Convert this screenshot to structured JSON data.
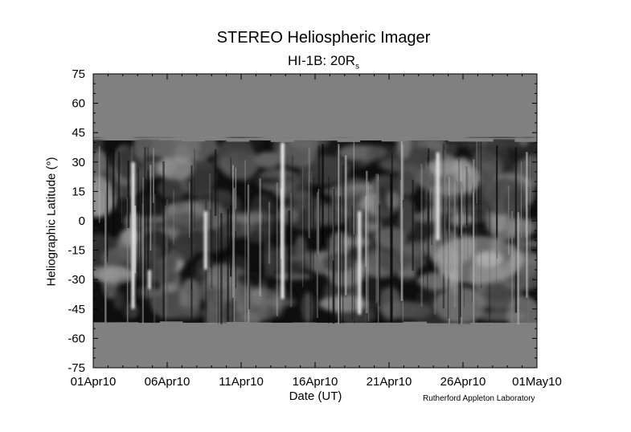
{
  "chart_data": {
    "type": "heatmap",
    "title": "STEREO Heliospheric Imager",
    "subtitle_main": "HI-1B: 20R",
    "subtitle_sub": "s",
    "xlabel": "Date (UT)",
    "ylabel": "Heliographic Latitude (°)",
    "credit": "Rutherford Appleton Laboratory",
    "x_tick_labels": [
      "01Apr10",
      "06Apr10",
      "11Apr10",
      "16Apr10",
      "21Apr10",
      "26Apr10",
      "01May10"
    ],
    "x_tick_days": [
      0,
      5,
      10,
      15,
      20,
      25,
      30
    ],
    "x_range_days": [
      0,
      30
    ],
    "y_ticks": [
      75,
      60,
      45,
      30,
      15,
      0,
      -15,
      -30,
      -45,
      -60,
      -75
    ],
    "ylim": [
      -75,
      75
    ],
    "data_band_latitude": {
      "top": 41,
      "bottom": -52
    },
    "no_data_color": "#808080",
    "colormap": "grayscale",
    "bright_features": [
      {
        "day": 2.7,
        "lat_from": -45,
        "lat_to": 30,
        "intensity": 0.95
      },
      {
        "day": 3.8,
        "lat_from": -35,
        "lat_to": -25,
        "intensity": 0.9
      },
      {
        "day": 7.6,
        "lat_from": -25,
        "lat_to": 5,
        "intensity": 0.95
      },
      {
        "day": 12.8,
        "lat_from": -40,
        "lat_to": 40,
        "intensity": 1.0
      },
      {
        "day": 18.0,
        "lat_from": -48,
        "lat_to": 5,
        "intensity": 0.95
      },
      {
        "day": 23.3,
        "lat_from": -10,
        "lat_to": 35,
        "intensity": 0.95
      }
    ]
  }
}
